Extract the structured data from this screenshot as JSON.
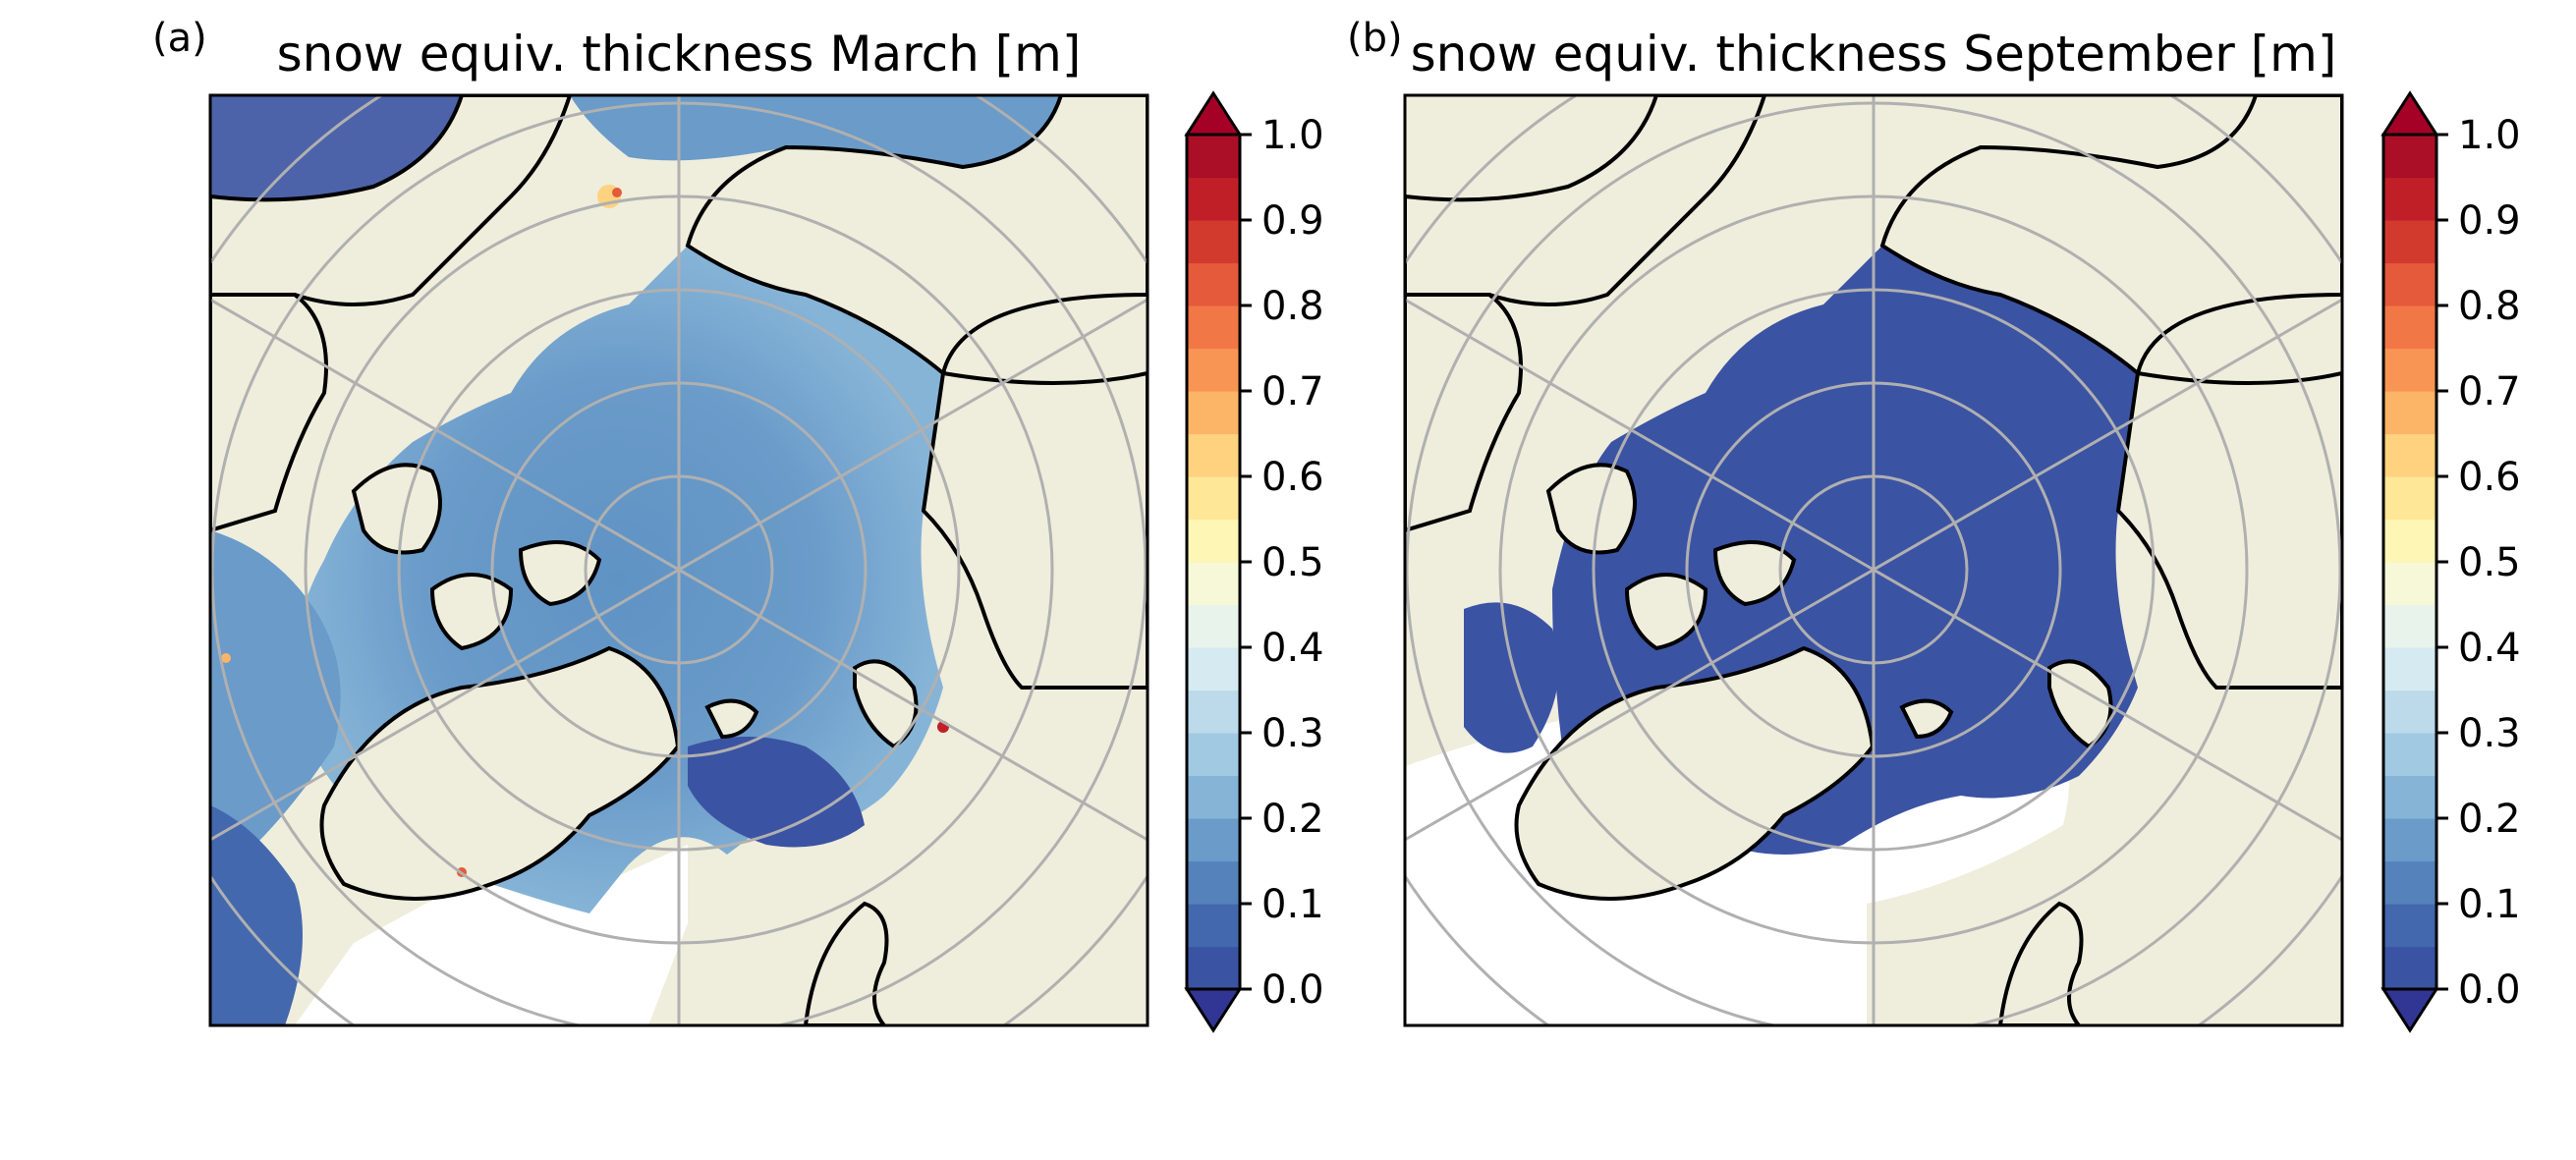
{
  "panels": [
    {
      "label": "(a)",
      "title": "snow equiv. thickness March [m]",
      "month": "March",
      "dominant_range_m": [
        0.1,
        0.25
      ]
    },
    {
      "label": "(b)",
      "title": "snow equiv. thickness September [m]",
      "month": "September",
      "dominant_range_m": [
        0.0,
        0.05
      ]
    }
  ],
  "colorbar": {
    "ticks": [
      "0.0",
      "0.1",
      "0.2",
      "0.3",
      "0.4",
      "0.5",
      "0.6",
      "0.7",
      "0.8",
      "0.9",
      "1.0"
    ],
    "range": [
      0.0,
      1.0
    ],
    "levels": 20,
    "extend": "both",
    "colors": [
      "#3b53a3",
      "#4468ae",
      "#5582bb",
      "#6a9bc9",
      "#86b4d7",
      "#a1c9e2",
      "#bcdae9",
      "#d6ebf1",
      "#e8f3eb",
      "#f6f8d7",
      "#fdf6b5",
      "#fee797",
      "#fed27f",
      "#fcb466",
      "#f99554",
      "#f27747",
      "#e45a3a",
      "#d33a2e",
      "#c01f28",
      "#ab0f27"
    ],
    "under_color": "#313695",
    "over_color": "#a50026"
  },
  "map": {
    "projection": "north-polar-stereographic",
    "land_color": "#efeddc",
    "ocean_missing_color": "#ffffff",
    "gridline_color": "#b0b0b0",
    "coastline_color": "#000000"
  }
}
